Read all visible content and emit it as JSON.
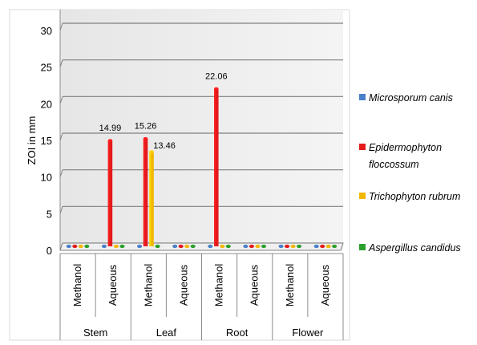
{
  "chart_data": {
    "type": "bar",
    "ylabel": "ZOI in mm",
    "xlabel": "",
    "title": "",
    "ylim": [
      0,
      30
    ],
    "yticks": [
      0,
      5,
      10,
      15,
      20,
      25,
      30
    ],
    "grid": true,
    "legend_position": "right",
    "groups": [
      "Stem",
      "Leaf",
      "Root",
      "Flower"
    ],
    "categories": [
      "Methanol",
      "Aqueous",
      "Methanol",
      "Aqueous",
      "Methanol",
      "Aqueous",
      "Methanol",
      "Aqueous"
    ],
    "series": [
      {
        "name": "Microsporum canis",
        "color": "#4a7fc9",
        "values": [
          0,
          0,
          0,
          0,
          0,
          0,
          0,
          0
        ]
      },
      {
        "name": "Epidermophyton floccossum",
        "color": "#e41a1c",
        "values": [
          0,
          14.99,
          15.26,
          0,
          22.06,
          0,
          0,
          0
        ]
      },
      {
        "name": "Trichophyton rubrum",
        "color": "#f2b705",
        "values": [
          0,
          0,
          13.46,
          0,
          0,
          0,
          0,
          0
        ]
      },
      {
        "name": "Aspergillus candidus",
        "color": "#2ca02c",
        "values": [
          0,
          0,
          0,
          0,
          0,
          0,
          0,
          0
        ]
      }
    ],
    "data_labels": [
      {
        "series": 1,
        "category": 1,
        "text": "14.99"
      },
      {
        "series": 1,
        "category": 2,
        "text": "15.26"
      },
      {
        "series": 2,
        "category": 2,
        "text": "13.46"
      },
      {
        "series": 1,
        "category": 4,
        "text": "22.06"
      }
    ],
    "legend": [
      {
        "lines": [
          "Microsporum canis"
        ]
      },
      {
        "lines": [
          "Epidermophyton",
          "floccossum"
        ]
      },
      {
        "lines": [
          "Trichophyton rubrum"
        ]
      },
      {
        "lines": [
          "Aspergillus candidus"
        ]
      }
    ]
  }
}
